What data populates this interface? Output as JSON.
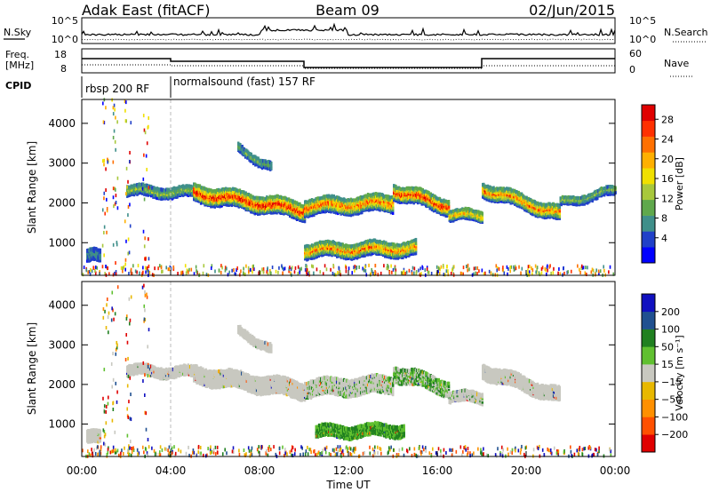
{
  "header": {
    "station": "Adak East (fitACF)",
    "beam": "Beam 09",
    "date": "02/Jun/2015"
  },
  "status_panels": {
    "nsky_label": "N.Sky",
    "nsky_ticks": [
      "10^5",
      "10^0"
    ],
    "nsearch_label": "N.Search",
    "freq_label_1": "Freq.",
    "freq_label_2": "[MHz]",
    "freq_ticks": [
      "18",
      "8"
    ],
    "nave_label": "Nave",
    "nave_ticks": [
      "60",
      "0"
    ],
    "cpid_label": "CPID",
    "cpid_segments": [
      {
        "label": "rbsp 200 RF",
        "start_hour": 0.0,
        "end_hour": 4.0
      },
      {
        "label": "normalsound (fast) 157 RF",
        "start_hour": 4.0,
        "end_hour": 24.0
      }
    ]
  },
  "time_axis": {
    "label": "Time UT",
    "ticks": [
      "00:00",
      "04:00",
      "08:00",
      "12:00",
      "16:00",
      "20:00",
      "00:00"
    ]
  },
  "chart_data": [
    {
      "type": "heatmap",
      "name": "power",
      "ylabel": "Slant Range [km]",
      "yticks": [
        1000,
        2000,
        3000,
        4000
      ],
      "ylim": [
        180,
        4600
      ],
      "xlim_hours": [
        0,
        24
      ],
      "colorbar_label": "Power [dB]",
      "colorbar_ticks": [
        "28",
        "24",
        "20",
        "16",
        "12",
        "8",
        "4"
      ],
      "colorbar_colors": [
        "#0000ff",
        "#2040c8",
        "#3f8f8a",
        "#5fa84c",
        "#a8c83c",
        "#f0e000",
        "#ffb000",
        "#ff7000",
        "#ff3000",
        "#e00000"
      ],
      "echo_bands": [
        {
          "start": 2.0,
          "end": 5.0,
          "r0": 2300,
          "r1": 2250,
          "thickness": 250,
          "peak": 0.35
        },
        {
          "start": 5.0,
          "end": 10.0,
          "r0": 2250,
          "r1": 1800,
          "thickness": 420,
          "peak": 0.9
        },
        {
          "start": 10.0,
          "end": 14.0,
          "r0": 1900,
          "r1": 2000,
          "thickness": 400,
          "peak": 0.75
        },
        {
          "start": 14.0,
          "end": 16.5,
          "r0": 2300,
          "r1": 1900,
          "thickness": 380,
          "peak": 0.85
        },
        {
          "start": 16.5,
          "end": 18.0,
          "r0": 1700,
          "r1": 1650,
          "thickness": 250,
          "peak": 0.6
        },
        {
          "start": 18.0,
          "end": 21.5,
          "r0": 2350,
          "r1": 1700,
          "thickness": 350,
          "peak": 0.7
        },
        {
          "start": 21.5,
          "end": 24.0,
          "r0": 2000,
          "r1": 2300,
          "thickness": 200,
          "peak": 0.3
        },
        {
          "start": 10.0,
          "end": 15.0,
          "r0": 800,
          "r1": 850,
          "thickness": 350,
          "peak": 0.7
        },
        {
          "start": 7.0,
          "end": 8.5,
          "r0": 3350,
          "r1": 2900,
          "thickness": 200,
          "peak": 0.25
        },
        {
          "start": 0.2,
          "end": 0.8,
          "r0": 650,
          "r1": 650,
          "thickness": 300,
          "peak": 0.15
        }
      ]
    },
    {
      "type": "heatmap",
      "name": "velocity",
      "ylabel": "Slant Range [km]",
      "yticks": [
        1000,
        2000,
        3000,
        4000
      ],
      "ylim": [
        180,
        4600
      ],
      "xlim_hours": [
        0,
        24
      ],
      "colorbar_label": "Velocity [m s⁻¹]",
      "colorbar_ticks": [
        "200",
        "100",
        "50",
        "15",
        "−15",
        "−50",
        "−100",
        "−200"
      ],
      "colorbar_colors": [
        "#e00000",
        "#ff5000",
        "#ff9000",
        "#e8b800",
        "#c8c8c0",
        "#60c030",
        "#208020",
        "#205090",
        "#1010c0"
      ],
      "echo_bands": [
        {
          "start": 2.0,
          "end": 5.0,
          "r0": 2350,
          "r1": 2300,
          "thickness": 250,
          "peak": 0
        },
        {
          "start": 5.0,
          "end": 10.0,
          "r0": 2250,
          "r1": 1850,
          "thickness": 420,
          "peak": 0
        },
        {
          "start": 10.0,
          "end": 14.0,
          "r0": 1900,
          "r1": 2000,
          "thickness": 420,
          "peak": 0.2
        },
        {
          "start": 14.0,
          "end": 16.5,
          "r0": 2300,
          "r1": 1900,
          "thickness": 380,
          "peak": 0.6
        },
        {
          "start": 16.5,
          "end": 18.0,
          "r0": 1700,
          "r1": 1650,
          "thickness": 250,
          "peak": 0.1
        },
        {
          "start": 18.0,
          "end": 21.5,
          "r0": 2350,
          "r1": 1700,
          "thickness": 350,
          "peak": 0
        },
        {
          "start": 10.5,
          "end": 14.5,
          "r0": 800,
          "r1": 850,
          "thickness": 300,
          "peak": 1
        },
        {
          "start": 7.0,
          "end": 8.5,
          "r0": 3350,
          "r1": 2900,
          "thickness": 200,
          "peak": 0
        },
        {
          "start": 0.2,
          "end": 0.8,
          "r0": 650,
          "r1": 650,
          "thickness": 300,
          "peak": 0
        }
      ]
    }
  ]
}
